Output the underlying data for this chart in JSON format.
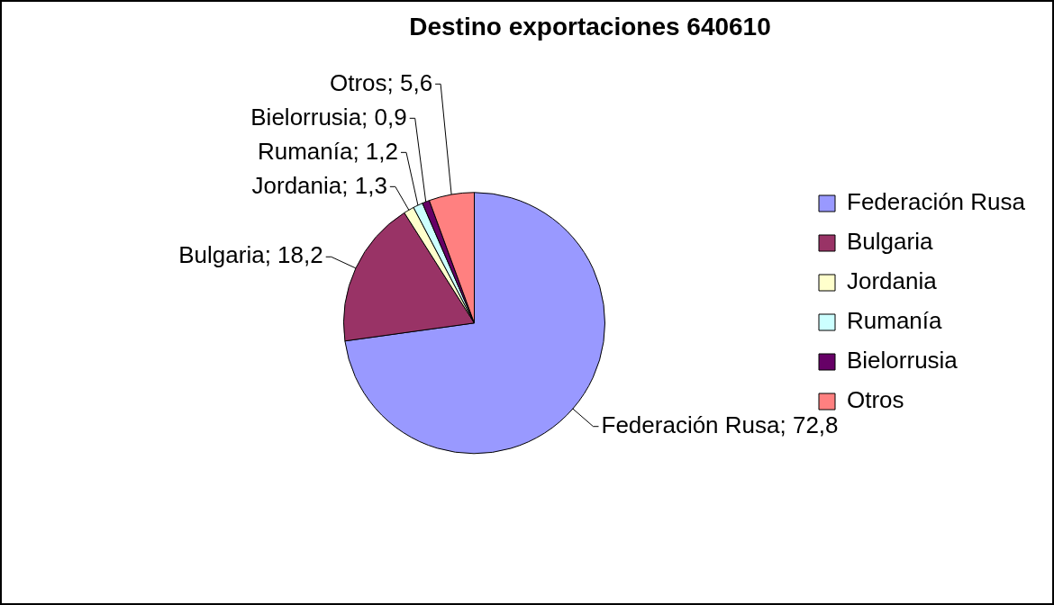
{
  "chart_data": {
    "type": "pie",
    "title": "Destino exportaciones 640610",
    "categories": [
      "Federación Rusa",
      "Bulgaria",
      "Jordania",
      "Rumanía",
      "Bielorrusia",
      "Otros"
    ],
    "values": [
      72.8,
      18.2,
      1.3,
      1.2,
      0.9,
      5.6
    ],
    "value_labels": [
      "Federación Rusa; 72,8",
      "Bulgaria; 18,2",
      "Jordania; 1,3",
      "Rumanía; 1,2",
      "Bielorrusia; 0,9",
      "Otros; 5,6"
    ],
    "colors": [
      "#9999ff",
      "#993366",
      "#ffffcc",
      "#ccffff",
      "#660066",
      "#ff8080"
    ],
    "legend": "right"
  }
}
